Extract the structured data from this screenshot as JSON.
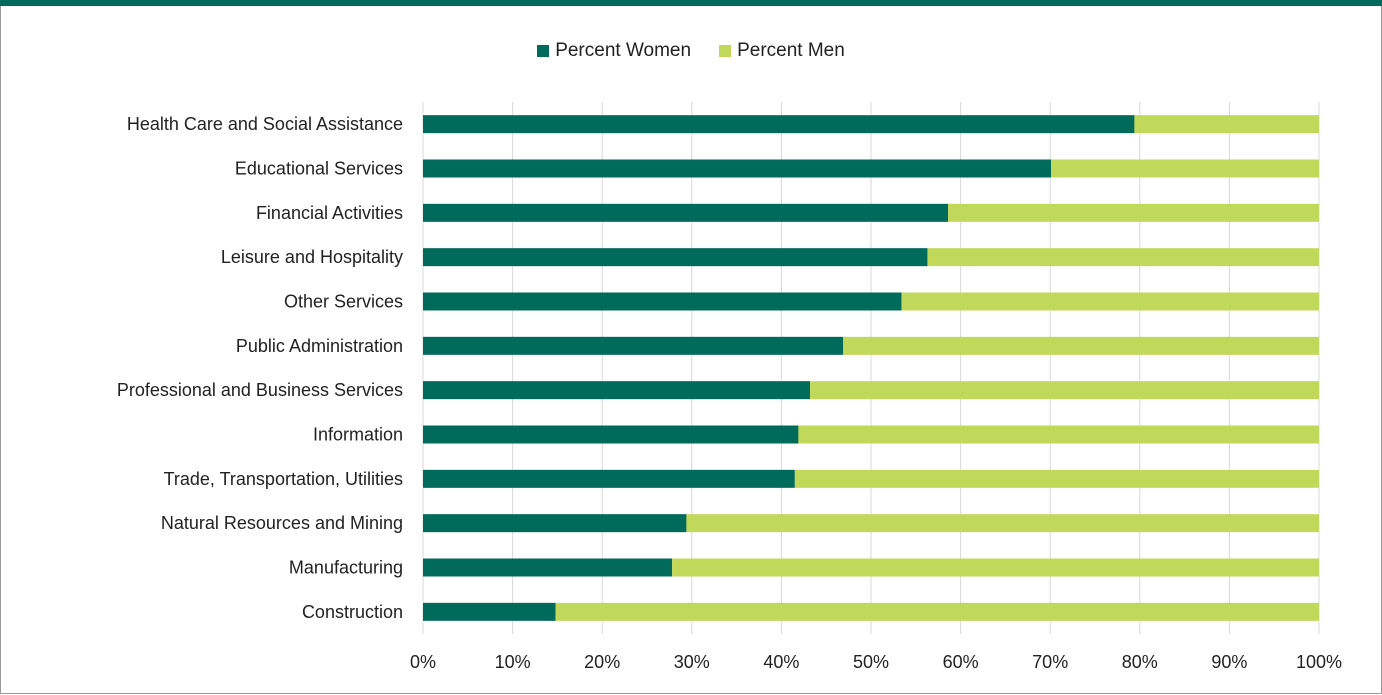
{
  "chart_data": {
    "type": "bar",
    "orientation": "horizontal",
    "stacked": true,
    "categories": [
      "Health Care and Social Assistance",
      "Educational Services",
      "Financial Activities",
      "Leisure and Hospitality",
      "Other Services",
      "Public Administration",
      "Professional and Business Services",
      "Information",
      "Trade, Transportation, Utilities",
      "Natural Resources and Mining",
      "Manufacturing",
      "Construction"
    ],
    "series": [
      {
        "name": "Percent Women",
        "color": "#006a5b",
        "values": [
          79.4,
          70.1,
          58.6,
          56.3,
          53.4,
          46.9,
          43.2,
          41.9,
          41.5,
          29.4,
          27.8,
          14.8
        ]
      },
      {
        "name": "Percent Men",
        "color": "#c2d85a",
        "values": [
          20.6,
          29.9,
          41.4,
          43.7,
          46.6,
          53.1,
          56.8,
          58.1,
          58.5,
          70.6,
          72.2,
          85.2
        ]
      }
    ],
    "xlim": [
      0,
      100
    ],
    "x_ticks": [
      "0%",
      "10%",
      "20%",
      "30%",
      "40%",
      "50%",
      "60%",
      "70%",
      "80%",
      "90%",
      "100%"
    ],
    "grid": true,
    "legend_position": "top",
    "title": "",
    "xlabel": "",
    "ylabel": ""
  },
  "colors": {
    "brand_band": "#006a5b",
    "grid": "#d9d9d9"
  }
}
